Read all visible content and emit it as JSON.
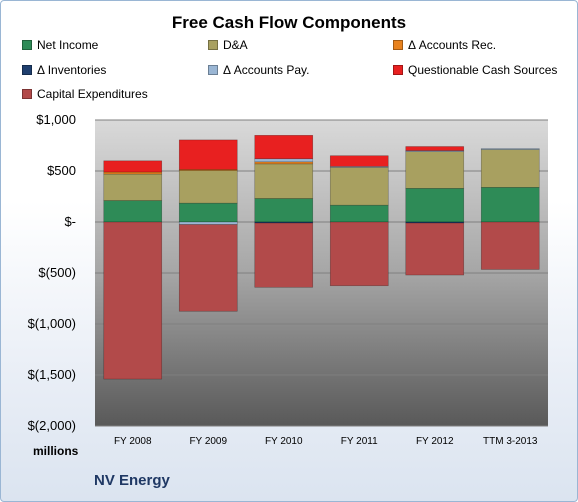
{
  "chart_data": {
    "type": "bar",
    "stacked": true,
    "title": "Free Cash Flow Components",
    "categories": [
      "FY 2008",
      "FY 2009",
      "FY 2010",
      "FY 2011",
      "FY 2012",
      "TTM 3-2013"
    ],
    "unit_label": "millions",
    "company": "NV Energy",
    "ylim": [
      -2000,
      1000
    ],
    "yticks": [
      1000,
      500,
      0,
      -500,
      -1000,
      -1500,
      -2000
    ],
    "ytick_labels": [
      "$1,000",
      "$500",
      "$-",
      "$(500)",
      "$(1,000)",
      "$(1,500)",
      "$(2,000)"
    ],
    "legend_position": "top",
    "series": [
      {
        "name": "Net Income",
        "color": "#2e8b57",
        "values": [
          210,
          185,
          230,
          165,
          330,
          340
        ]
      },
      {
        "name": "D&A",
        "color": "#a8a060",
        "values": [
          260,
          320,
          340,
          370,
          360,
          370
        ]
      },
      {
        "name": "Δ Accounts Rec.",
        "color": "#e8821e",
        "values": [
          20,
          10,
          20,
          0,
          0,
          0
        ]
      },
      {
        "name": "Δ Inventories",
        "color": "#1f3f6e",
        "values": [
          0,
          0,
          -10,
          0,
          -10,
          0
        ]
      },
      {
        "name": "Δ Accounts Pay.",
        "color": "#9ab6d4",
        "values": [
          0,
          -25,
          30,
          10,
          10,
          10
        ]
      },
      {
        "name": "Questionable Cash Sources",
        "color": "#e82020",
        "values": [
          110,
          290,
          230,
          105,
          40,
          0
        ]
      },
      {
        "name": "Capital Expenditures",
        "color": "#b24a4a",
        "values": [
          -1540,
          -850,
          -630,
          -625,
          -510,
          -465
        ]
      }
    ]
  }
}
